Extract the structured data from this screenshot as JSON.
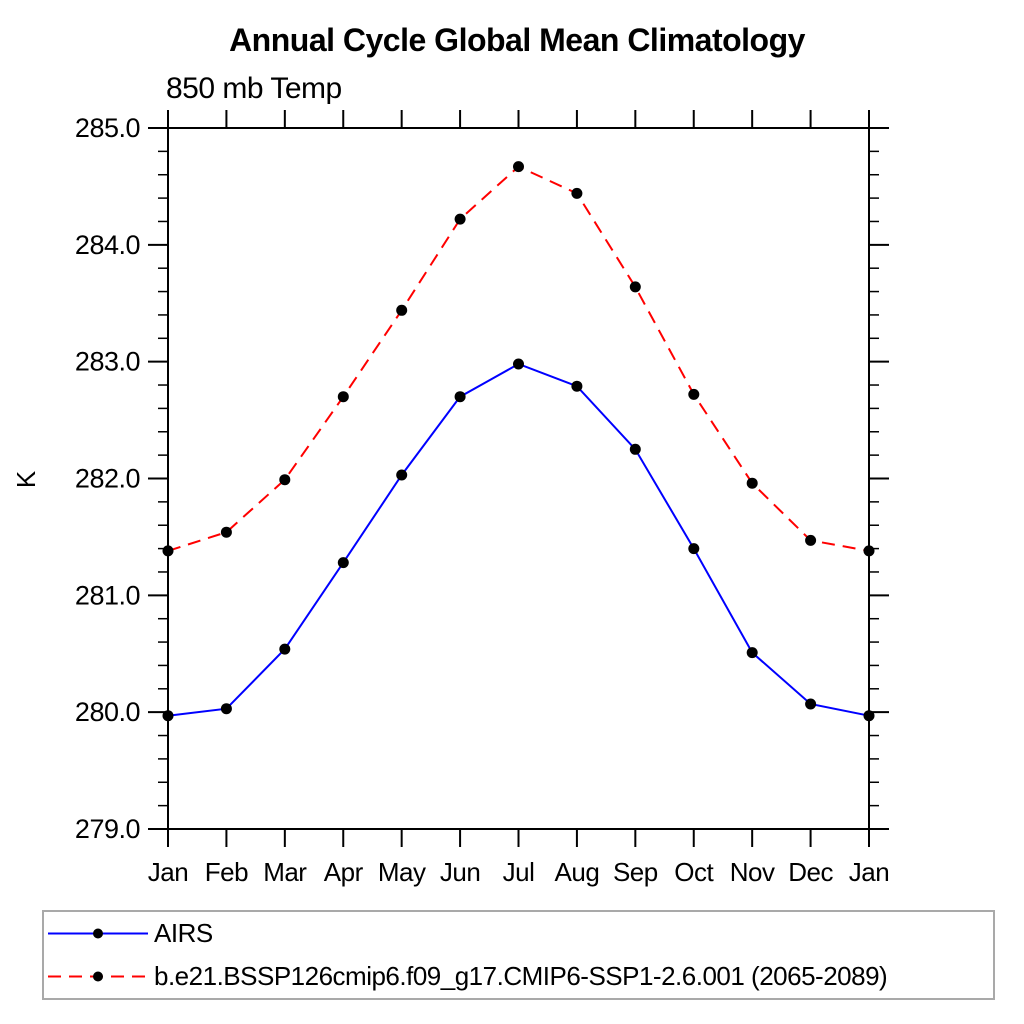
{
  "page": {
    "background_color": "#ffffff",
    "text_color": "#000000"
  },
  "chart_data": {
    "type": "line",
    "title": "Annual Cycle Global Mean Climatology",
    "subtitle": "850 mb Temp",
    "xlabel": "",
    "ylabel": "K",
    "categories": [
      "Jan",
      "Feb",
      "Mar",
      "Apr",
      "May",
      "Jun",
      "Jul",
      "Aug",
      "Sep",
      "Oct",
      "Nov",
      "Dec",
      "Jan"
    ],
    "ylim": [
      279.0,
      285.0
    ],
    "ytick_interval": 1.0,
    "yminor_interval": 0.2,
    "yticks": [
      "279.0",
      "280.0",
      "281.0",
      "282.0",
      "283.0",
      "284.0",
      "285.0"
    ],
    "grid": false,
    "legend_position": "bottom-left-box",
    "axis_color": "#000000",
    "legend_border_color": "#a9a9a9",
    "series": [
      {
        "name": "AIRS",
        "color": "#0000ff",
        "line_style": "solid",
        "marker": "filled-circle",
        "marker_color": "#000000",
        "values": [
          279.97,
          280.03,
          280.54,
          281.28,
          282.03,
          282.7,
          282.98,
          282.79,
          282.25,
          281.4,
          280.51,
          280.07,
          279.97
        ]
      },
      {
        "name": "b.e21.BSSP126cmip6.f09_g17.CMIP6-SSP1-2.6.001 (2065-2089)",
        "color": "#ff0000",
        "line_style": "dashed",
        "marker": "filled-circle",
        "marker_color": "#000000",
        "values": [
          281.38,
          281.54,
          281.99,
          282.7,
          283.44,
          284.22,
          284.67,
          284.44,
          283.64,
          282.72,
          281.96,
          281.47,
          281.38
        ]
      }
    ]
  }
}
